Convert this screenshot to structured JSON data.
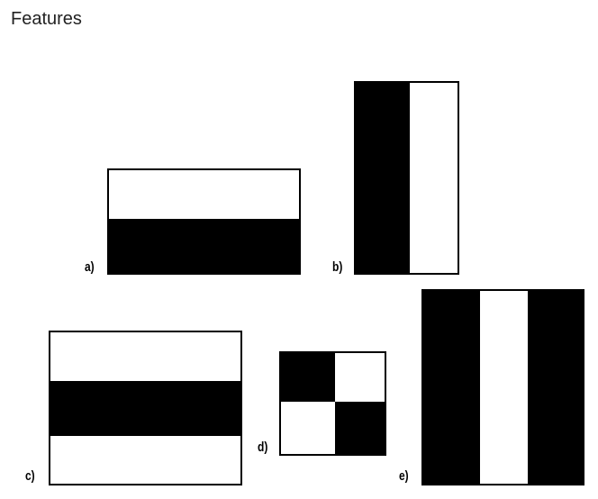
{
  "page": {
    "title": "Features"
  },
  "features": {
    "a": {
      "label": "a)",
      "top": "white",
      "bottom": "black"
    },
    "b": {
      "label": "b)",
      "left": "black",
      "right": "white"
    },
    "c": {
      "label": "c)",
      "stripes": [
        "white",
        "black",
        "white"
      ]
    },
    "d": {
      "label": "d)",
      "grid": [
        [
          "black",
          "white"
        ],
        [
          "white",
          "black"
        ]
      ]
    },
    "e": {
      "label": "e)",
      "stripes": [
        "black",
        "white",
        "black"
      ]
    }
  }
}
